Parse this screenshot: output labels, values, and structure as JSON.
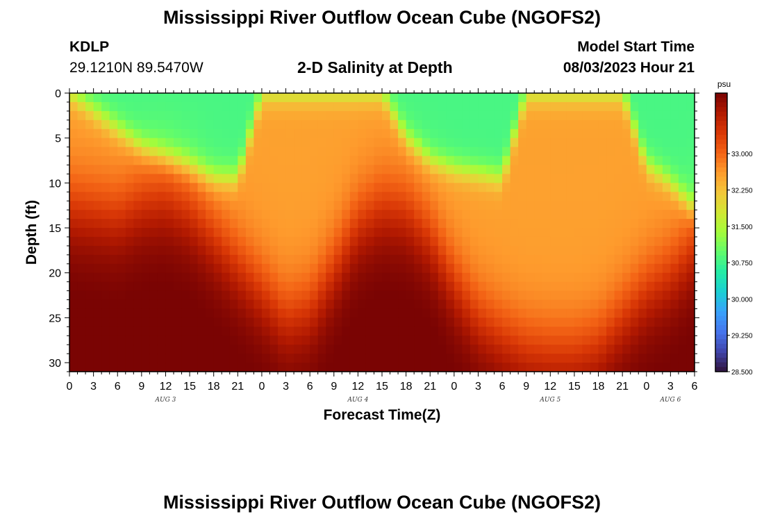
{
  "header": {
    "title": "Mississippi River Outflow Ocean Cube (NGOFS2)",
    "station_id": "KDLP",
    "location": "29.1210N  89.5470W",
    "subtitle": "2-D Salinity at Depth",
    "model_start_label": "Model Start Time",
    "model_start_value": "08/03/2023 Hour 21"
  },
  "footer": {
    "title": "Mississippi River Outflow Ocean Cube (NGOFS2)"
  },
  "chart_data": {
    "type": "heatmap",
    "variable": "Salinity",
    "xlabel": "Forecast Time(Z)",
    "ylabel": "Depth (ft)",
    "x_range_hours_from_aug3_00z": [
      0,
      78
    ],
    "y_range_ft": [
      0,
      31
    ],
    "y_inverted": true,
    "x_tick_labels": [
      "0",
      "3",
      "6",
      "9",
      "12",
      "15",
      "18",
      "21",
      "0",
      "3",
      "6",
      "9",
      "12",
      "15",
      "18",
      "21",
      "0",
      "3",
      "6",
      "9",
      "12",
      "15",
      "18",
      "21",
      "0",
      "3",
      "6"
    ],
    "x_tick_hours": [
      0,
      3,
      6,
      9,
      12,
      15,
      18,
      21,
      24,
      27,
      30,
      33,
      36,
      39,
      42,
      45,
      48,
      51,
      54,
      57,
      60,
      63,
      66,
      69,
      72,
      75,
      78
    ],
    "date_labels": [
      {
        "text": "AUG 3",
        "hour": 12
      },
      {
        "text": "AUG 4",
        "hour": 36
      },
      {
        "text": "AUG 5",
        "hour": 60
      },
      {
        "text": "AUG 6",
        "hour": 75
      }
    ],
    "y_ticks": [
      0,
      5,
      10,
      15,
      20,
      25,
      30
    ],
    "colorbar": {
      "unit": "psu",
      "min": 28.5,
      "max": 34.25,
      "ticks": [
        28.5,
        29.25,
        30.0,
        30.75,
        31.5,
        32.25,
        33.0
      ],
      "tick_labels": [
        "28.500",
        "29.250",
        "30.000",
        "30.750",
        "31.500",
        "32.250",
        "33.000"
      ],
      "colors": [
        "#30123b",
        "#4145ab",
        "#4675ed",
        "#39a2fc",
        "#1bcfd4",
        "#24eca6",
        "#61fc6c",
        "#a4fc3b",
        "#d1e834",
        "#f3c63a",
        "#fe9b2d",
        "#f36315",
        "#d93806",
        "#b11901",
        "#7a0403"
      ]
    },
    "time_hours": [
      0,
      6,
      9,
      12,
      15,
      18,
      21,
      24,
      27,
      30,
      33,
      36,
      39,
      42,
      45,
      48,
      51,
      54,
      57,
      60,
      63,
      66,
      69,
      72,
      75,
      78
    ],
    "fresh_layer_bottom_ft": [
      0,
      4,
      6,
      7,
      8,
      9.5,
      9.5,
      0,
      0,
      0,
      0,
      0,
      0,
      5,
      7.5,
      8.5,
      9,
      9.5,
      0,
      0,
      0,
      0,
      0,
      8,
      10,
      13
    ],
    "saline_layer_top_ft": [
      12.5,
      13.5,
      12,
      11.5,
      13,
      16,
      19,
      22,
      25,
      24,
      19.5,
      14.5,
      12.5,
      13,
      16,
      21,
      25,
      27,
      28.5,
      29,
      29,
      28,
      25,
      22,
      20,
      17
    ]
  }
}
